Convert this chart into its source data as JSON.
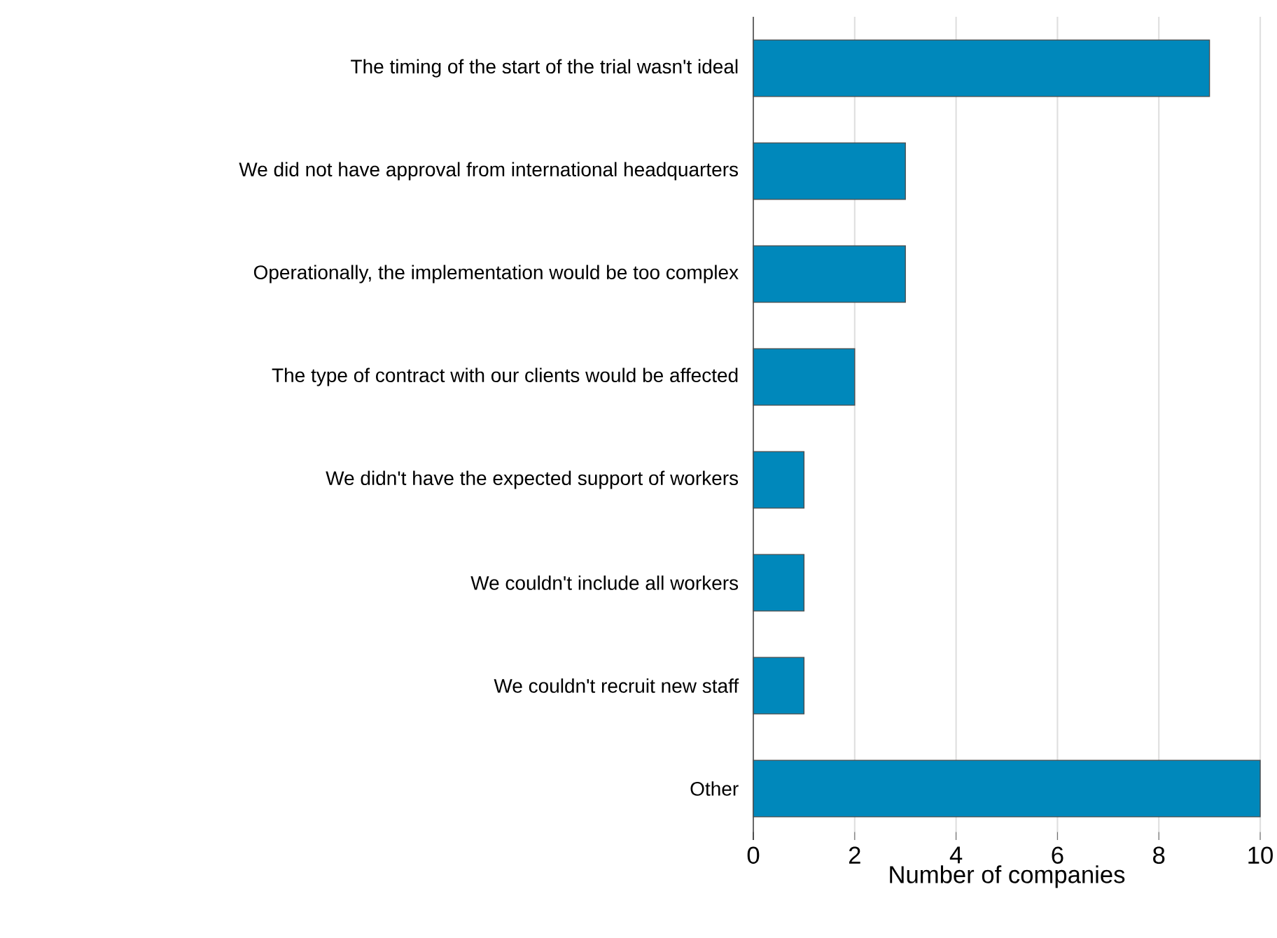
{
  "chart_data": {
    "type": "bar",
    "orientation": "horizontal",
    "xlabel": "Number of companies",
    "categories": [
      "The timing of the start of the trial wasn't ideal",
      "We did not have approval from international headquarters",
      "Operationally, the implementation would be too complex",
      "The type of contract with our clients would be affected",
      "We didn't have the expected support of workers",
      "We couldn't include all workers",
      "We couldn't recruit new staff",
      "Other"
    ],
    "values": [
      9,
      3,
      3,
      2,
      1,
      1,
      1,
      10
    ],
    "color": "#0088bb",
    "xlim": [
      0,
      10
    ],
    "xticks": [
      0,
      2,
      4,
      6,
      8,
      10
    ],
    "grid": "x"
  }
}
